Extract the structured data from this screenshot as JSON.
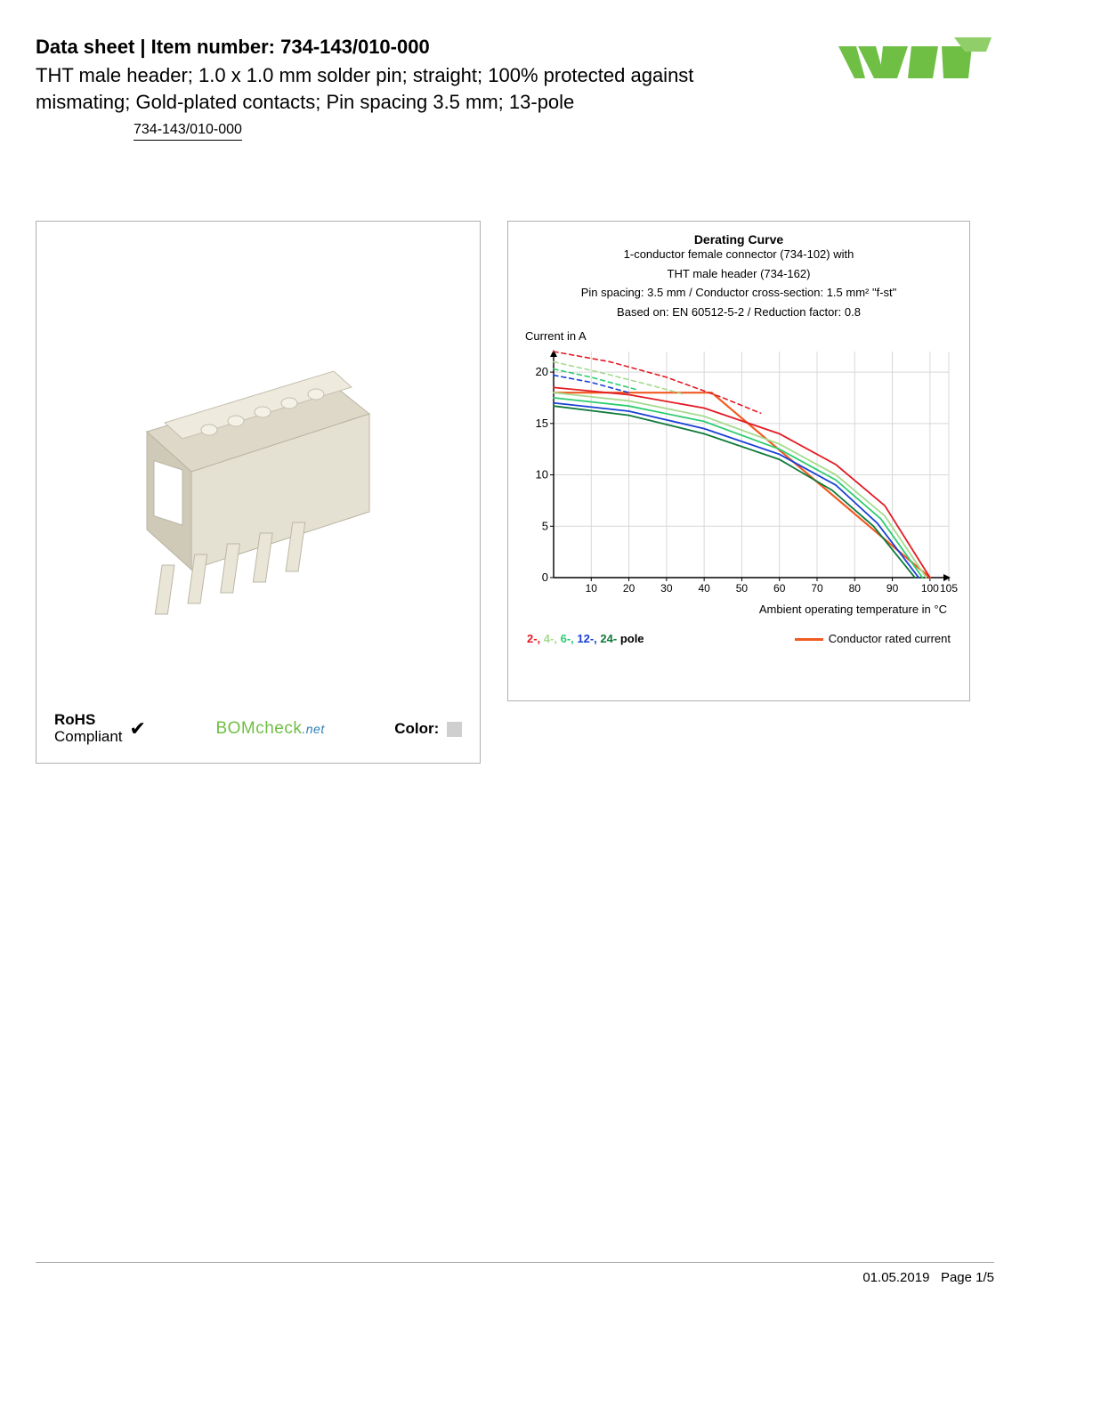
{
  "header": {
    "prefix": "Data sheet  |  Item number: ",
    "item_number": "734-143/010-000",
    "subtitle": "THT male header; 1.0 x 1.0 mm solder pin; straight; 100% protected against mismating; Gold-plated contacts; Pin spacing 3.5 mm; 13-pole",
    "link": "734-143/010-000"
  },
  "logo": {
    "brand": "WAGO",
    "color": "#6fbf44"
  },
  "left_panel": {
    "rohs_line1": "RoHS",
    "rohs_line2": "Compliant",
    "bomcheck": "BOMcheck",
    "bomcheck_net": ".net",
    "color_label": "Color:",
    "color_swatch": "#cfcfcf",
    "product_color": "#d9d4c4"
  },
  "chart": {
    "title": "Derating Curve",
    "sub1": "1-conductor female connector (734-102) with",
    "sub2": "THT male header (734-162)",
    "sub3": "Pin spacing: 3.5 mm / Conductor cross-section: 1.5 mm² \"f-st\"",
    "sub4": "Based on: EN 60512-5-2 / Reduction factor: 0.8",
    "y_label": "Current in A",
    "x_label": "Ambient operating temperature in °C",
    "x_ticks": [
      10,
      20,
      30,
      40,
      50,
      60,
      70,
      80,
      90,
      100,
      105
    ],
    "y_ticks": [
      0,
      5,
      10,
      15,
      20
    ],
    "xlim": [
      0,
      105
    ],
    "ylim": [
      0,
      22
    ],
    "grid_color": "#d8d8d8",
    "axis_color": "#000000",
    "series": [
      {
        "name": "conductor_rated",
        "color": "#f15a22",
        "width": 2.2,
        "dash": "none",
        "points": [
          [
            0,
            18
          ],
          [
            40,
            18
          ],
          [
            42,
            18
          ],
          [
            100,
            0
          ]
        ]
      },
      {
        "name": "2-pole",
        "color": "#e31b23",
        "width": 1.8,
        "dash": "none",
        "points": [
          [
            0,
            18.5
          ],
          [
            20,
            17.8
          ],
          [
            40,
            16.5
          ],
          [
            60,
            14
          ],
          [
            75,
            11
          ],
          [
            88,
            7
          ],
          [
            100,
            0
          ]
        ]
      },
      {
        "name": "2-pole-dash",
        "color": "#e31b23",
        "width": 1.6,
        "dash": "5,4",
        "points": [
          [
            0,
            22
          ],
          [
            15,
            21
          ],
          [
            30,
            19.5
          ],
          [
            45,
            17.5
          ],
          [
            55,
            16
          ]
        ]
      },
      {
        "name": "4-pole",
        "color": "#a5db8f",
        "width": 1.8,
        "dash": "none",
        "points": [
          [
            0,
            18
          ],
          [
            20,
            17.2
          ],
          [
            40,
            15.7
          ],
          [
            60,
            13
          ],
          [
            75,
            10
          ],
          [
            88,
            6
          ],
          [
            99,
            0
          ]
        ]
      },
      {
        "name": "4-pole-dash",
        "color": "#a5db8f",
        "width": 1.6,
        "dash": "5,4",
        "points": [
          [
            0,
            21
          ],
          [
            12,
            20
          ],
          [
            25,
            18.8
          ],
          [
            35,
            17.8
          ]
        ]
      },
      {
        "name": "6-pole",
        "color": "#2ecc71",
        "width": 1.8,
        "dash": "none",
        "points": [
          [
            0,
            17.5
          ],
          [
            20,
            16.7
          ],
          [
            40,
            15.2
          ],
          [
            60,
            12.5
          ],
          [
            75,
            9.5
          ],
          [
            87,
            5.7
          ],
          [
            98,
            0
          ]
        ]
      },
      {
        "name": "6-pole-dash",
        "color": "#2ecc71",
        "width": 1.6,
        "dash": "5,4",
        "points": [
          [
            0,
            20.3
          ],
          [
            10,
            19.5
          ],
          [
            22,
            18.3
          ]
        ]
      },
      {
        "name": "12-pole",
        "color": "#1a3fd6",
        "width": 1.8,
        "dash": "none",
        "points": [
          [
            0,
            17
          ],
          [
            20,
            16.2
          ],
          [
            40,
            14.5
          ],
          [
            60,
            12
          ],
          [
            75,
            9
          ],
          [
            86,
            5.3
          ],
          [
            97,
            0
          ]
        ]
      },
      {
        "name": "12-pole-dash",
        "color": "#1a3fd6",
        "width": 1.6,
        "dash": "5,4",
        "points": [
          [
            0,
            19.7
          ],
          [
            10,
            19
          ],
          [
            20,
            18
          ]
        ]
      },
      {
        "name": "24-pole",
        "color": "#0f7a3a",
        "width": 1.8,
        "dash": "none",
        "points": [
          [
            0,
            16.7
          ],
          [
            20,
            15.8
          ],
          [
            40,
            14
          ],
          [
            60,
            11.5
          ],
          [
            74,
            8.5
          ],
          [
            85,
            5
          ],
          [
            96,
            0
          ]
        ]
      }
    ],
    "legend_poles": [
      {
        "label": "2-,",
        "color": "#e31b23"
      },
      {
        "label": "4-,",
        "color": "#a5db8f"
      },
      {
        "label": "6-,",
        "color": "#2ecc71"
      },
      {
        "label": "12-,",
        "color": "#1a3fd6"
      },
      {
        "label": "24-",
        "color": "#0f7a3a"
      }
    ],
    "legend_poles_suffix": " pole",
    "legend_rated": "Conductor rated current"
  },
  "footer": {
    "date": "01.05.2019",
    "page_label": "Page 1/5"
  }
}
